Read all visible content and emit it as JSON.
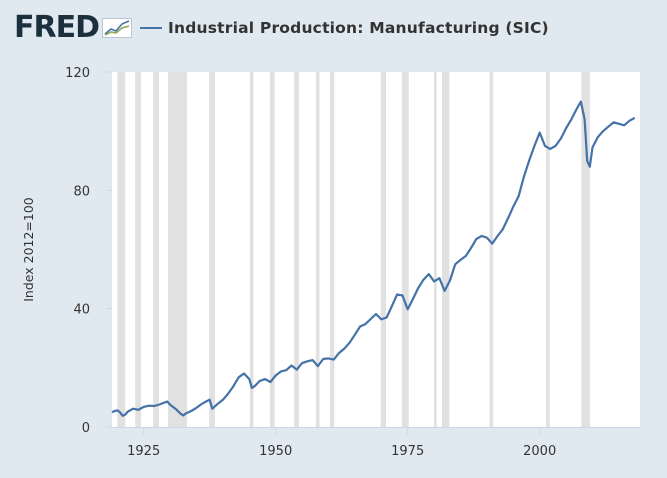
{
  "header": {
    "logo": "FRED",
    "logo_icon": "line-chart-icon"
  },
  "colors": {
    "series": "#4572a7",
    "recession": "#e1e1e1",
    "background": "#e1e9f0",
    "plot": "#ffffff"
  },
  "chart_data": {
    "type": "line",
    "title": "",
    "xlabel": "",
    "ylabel": "Index 2012=100",
    "xlim": [
      1919,
      2019
    ],
    "ylim": [
      0,
      120
    ],
    "grid": false,
    "x_ticks": [
      1925,
      1950,
      1975,
      2000
    ],
    "y_ticks": [
      0,
      40,
      80,
      120
    ],
    "recessions": [
      [
        1920.0,
        1921.5
      ],
      [
        1923.4,
        1924.5
      ],
      [
        1926.8,
        1927.9
      ],
      [
        1929.6,
        1933.2
      ],
      [
        1937.4,
        1938.5
      ],
      [
        1945.1,
        1945.8
      ],
      [
        1948.9,
        1949.8
      ],
      [
        1953.5,
        1954.4
      ],
      [
        1957.6,
        1958.3
      ],
      [
        1960.3,
        1961.1
      ],
      [
        1969.9,
        1970.9
      ],
      [
        1973.9,
        1975.2
      ],
      [
        1980.0,
        1980.5
      ],
      [
        1981.5,
        1982.9
      ],
      [
        1990.5,
        1991.2
      ],
      [
        2001.2,
        2001.9
      ],
      [
        2007.9,
        2009.5
      ]
    ],
    "series": [
      {
        "name": "Industrial Production: Manufacturing (SIC)",
        "x": [
          1919,
          1919.5,
          1920,
          1920.5,
          1921,
          1921.5,
          1922,
          1923,
          1924,
          1925,
          1926,
          1927,
          1928,
          1929,
          1929.5,
          1930,
          1931,
          1932,
          1932.5,
          1933,
          1934,
          1935,
          1936,
          1937,
          1937.5,
          1938,
          1939,
          1940,
          1941,
          1942,
          1943,
          1944,
          1945,
          1945.5,
          1946,
          1947,
          1948,
          1949,
          1950,
          1951,
          1952,
          1953,
          1954,
          1955,
          1956,
          1957,
          1958,
          1959,
          1960,
          1961,
          1962,
          1963,
          1964,
          1965,
          1966,
          1967,
          1968,
          1969,
          1970,
          1971,
          1972,
          1973,
          1974,
          1975,
          1976,
          1977,
          1978,
          1979,
          1980,
          1981,
          1982,
          1983,
          1984,
          1985,
          1986,
          1987,
          1988,
          1989,
          1990,
          1991,
          1992,
          1993,
          1994,
          1995,
          1996,
          1997,
          1998,
          1999,
          2000,
          2001,
          2002,
          2003,
          2004,
          2005,
          2006,
          2007,
          2007.8,
          2008.5,
          2009,
          2009.5,
          2010,
          2011,
          2012,
          2013,
          2014,
          2015,
          2016,
          2017,
          2018
        ],
        "values": [
          5.0,
          5.4,
          5.6,
          5.0,
          3.8,
          4.2,
          5.2,
          6.2,
          5.8,
          6.8,
          7.2,
          7.1,
          7.6,
          8.3,
          8.6,
          7.5,
          6.2,
          4.5,
          3.9,
          4.6,
          5.4,
          6.5,
          7.8,
          8.8,
          9.2,
          6.2,
          7.8,
          9.2,
          11.3,
          13.8,
          16.8,
          18.1,
          16.2,
          13.2,
          13.8,
          15.6,
          16.2,
          15.2,
          17.4,
          18.8,
          19.2,
          20.8,
          19.4,
          21.6,
          22.2,
          22.6,
          20.6,
          23.0,
          23.2,
          22.8,
          25.0,
          26.5,
          28.5,
          31.2,
          34.0,
          34.8,
          36.5,
          38.2,
          36.4,
          37.0,
          40.8,
          44.8,
          44.5,
          39.8,
          43.3,
          47.0,
          49.8,
          51.7,
          49.2,
          50.3,
          46.0,
          49.5,
          55.0,
          56.5,
          57.8,
          60.5,
          63.5,
          64.6,
          64.0,
          62.0,
          64.5,
          66.8,
          70.5,
          74.5,
          78.0,
          84.5,
          90.0,
          95.0,
          99.5,
          95.0,
          94.0,
          95.0,
          97.5,
          101.0,
          104.0,
          107.5,
          110.0,
          104.0,
          90.0,
          88.0,
          94.5,
          98.0,
          100.0,
          101.5,
          103.0,
          102.5,
          102.0,
          103.5,
          104.5
        ]
      }
    ]
  }
}
